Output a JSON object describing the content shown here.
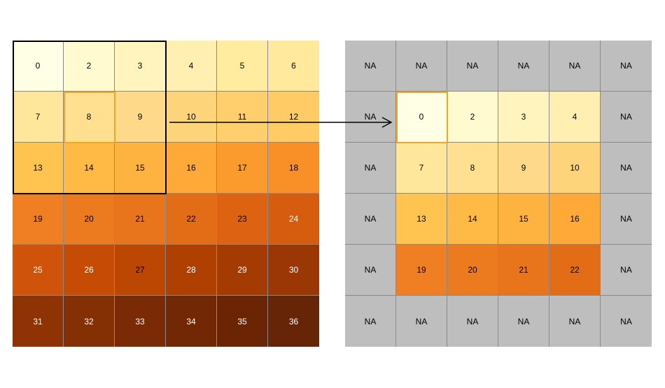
{
  "input_raster": {
    "values": [
      0,
      2,
      3,
      4,
      5,
      6,
      7,
      8,
      9,
      10,
      11,
      12,
      13,
      14,
      15,
      16,
      17,
      18,
      19,
      20,
      21,
      22,
      23,
      24,
      25,
      26,
      27,
      28,
      29,
      30,
      31,
      32,
      33,
      34,
      35,
      36
    ],
    "colors": [
      "#ffffe5",
      "#fffad0",
      "#fff4bd",
      "#fff0b2",
      "#ffec9e",
      "#ffe99c",
      "#fee69a",
      "#fee090",
      "#fed98a",
      "#fed47b",
      "#fecf6c",
      "#fecb64",
      "#fec44f",
      "#feba45",
      "#feb23f",
      "#fea938",
      "#fb9a2d",
      "#f88f27",
      "#f07f23",
      "#ec7b20",
      "#e8751c",
      "#e36c17",
      "#dd6313",
      "#d65c0e",
      "#cf530b",
      "#c64c06",
      "#bb4702",
      "#af4002",
      "#a43b03",
      "#9a3704",
      "#8f3304",
      "#852f05",
      "#7a2b06",
      "#722805",
      "#6b2505",
      "#662506"
    ],
    "text_colors": [
      "#000",
      "#000",
      "#000",
      "#000",
      "#000",
      "#000",
      "#000",
      "#000",
      "#000",
      "#000",
      "#000",
      "#000",
      "#000",
      "#000",
      "#000",
      "#000",
      "#000",
      "#000",
      "#000",
      "#000",
      "#000",
      "#000",
      "#000",
      "#fff",
      "#fff",
      "#fff",
      "#000",
      "#fff",
      "#fff",
      "#fff",
      "#fff",
      "#fff",
      "#fff",
      "#fff",
      "#fff",
      "#fff"
    ]
  },
  "output_raster": {
    "values": [
      "NA",
      "NA",
      "NA",
      "NA",
      "NA",
      "NA",
      "NA",
      "0",
      "2",
      "3",
      "4",
      "NA",
      "NA",
      "7",
      "8",
      "9",
      "10",
      "NA",
      "NA",
      "13",
      "14",
      "15",
      "16",
      "NA",
      "NA",
      "19",
      "20",
      "21",
      "22",
      "NA",
      "NA",
      "NA",
      "NA",
      "NA",
      "NA",
      "NA"
    ],
    "colors": [
      "#bebebe",
      "#bebebe",
      "#bebebe",
      "#bebebe",
      "#bebebe",
      "#bebebe",
      "#bebebe",
      "#ffffe5",
      "#fffad0",
      "#fff4bd",
      "#fff0b2",
      "#bebebe",
      "#bebebe",
      "#fee69a",
      "#fee090",
      "#fed98a",
      "#fed47b",
      "#bebebe",
      "#bebebe",
      "#fec44f",
      "#feba45",
      "#feb23f",
      "#fea938",
      "#bebebe",
      "#bebebe",
      "#f07f23",
      "#ec7b20",
      "#e8751c",
      "#e36c17",
      "#bebebe",
      "#bebebe",
      "#bebebe",
      "#bebebe",
      "#bebebe",
      "#bebebe",
      "#bebebe"
    ],
    "text_color": "#000"
  },
  "highlight_color": "#f5a623",
  "window_color": "#000000"
}
